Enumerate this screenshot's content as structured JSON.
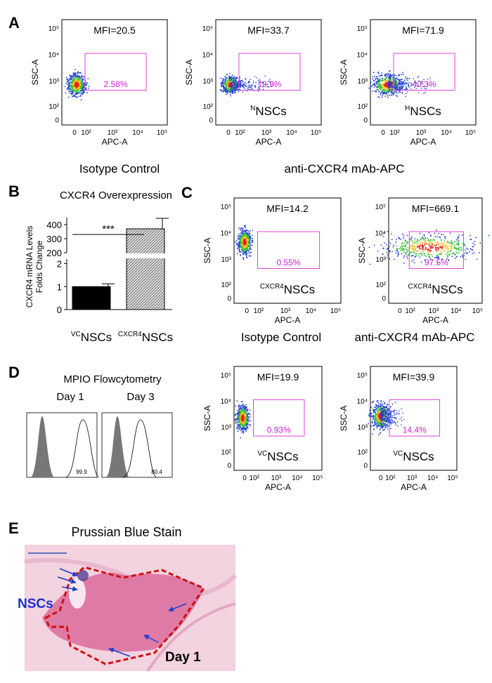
{
  "panels": {
    "a": "A",
    "b": "B",
    "c": "C",
    "d": "D",
    "e": "E"
  },
  "axis": {
    "x_label": "APC-A",
    "y_label": "SSC-A",
    "x_ticks": [
      "0",
      "10²",
      "10³",
      "10⁴",
      "10⁵"
    ],
    "y_ticks": [
      "10⁵",
      "10⁴",
      "10³",
      "10²",
      "0"
    ]
  },
  "flow_plots": [
    {
      "mfi": "MFI=20.5",
      "gate_percent": "2.58%"
    },
    {
      "mfi": "MFI=33.7",
      "gate_percent": "19.9%",
      "label_sup": "N",
      "label": "NSCs"
    },
    {
      "mfi": "MFI=71.9",
      "gate_percent": "40.3%",
      "label_sup": "H",
      "label": "NSCs"
    },
    {
      "mfi": "MFI=14.2",
      "gate_percent": "0.55%",
      "label_sup": "CXCR4",
      "label": "NSCs"
    },
    {
      "mfi": "MFI=669.1",
      "gate_percent": "97.5%",
      "label_sup": "CXCR4",
      "label": "NSCs"
    },
    {
      "mfi": "MFI=19.9",
      "gate_percent": "0.93%",
      "label_sup": "VC",
      "label": "NSCs"
    },
    {
      "mfi": "MFI=39.9",
      "gate_percent": "14.4%",
      "label_sup": "VC",
      "label": "NSCs"
    }
  ],
  "captions": {
    "a_left": "Isotype Control",
    "a_right": "anti-CXCR4 mAb-APC",
    "c_left": "Isotype Control",
    "c_right": "anti-CXCR4 mAb-APC"
  },
  "chart_data": {
    "type": "bar",
    "title": "CXCR4 Overexpression",
    "y_label": [
      "CXCR4 mRNA Levels",
      "Folds Change"
    ],
    "categories": [
      "NSCs",
      "NSCs"
    ],
    "category_sups": [
      "VC",
      "CXCR4"
    ],
    "values": [
      1.0,
      370
    ],
    "errors": [
      0.12,
      75
    ],
    "colors": [
      "#000000",
      "#bdbdbd"
    ],
    "ylim": [
      0,
      450
    ],
    "ybreak": [
      2.2,
      200
    ],
    "yticks": [
      0,
      1,
      2,
      200,
      300,
      400
    ],
    "significance": "***"
  },
  "mpio": {
    "title": "MPIO Flowcytometry",
    "days": [
      "Day 1",
      "Day 3"
    ],
    "percents": [
      "99.9",
      "80.4"
    ]
  },
  "stain": {
    "title": "Prussian Blue Stain",
    "cells": "NSCs",
    "day": "Day 1"
  }
}
